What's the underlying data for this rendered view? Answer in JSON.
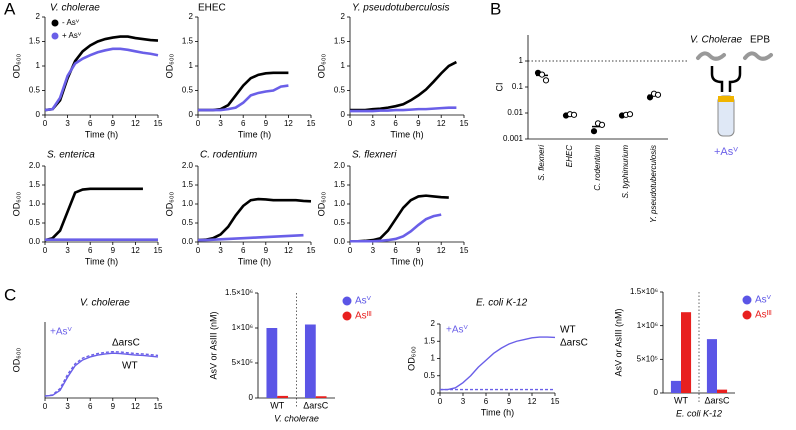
{
  "panel_labels": [
    "A",
    "B",
    "C"
  ],
  "diagram": {
    "organism": "V. Cholerae",
    "competitor": "EPB",
    "condition": "+Asⱽ"
  },
  "chart_data": [
    {
      "type": "line",
      "title": "V. cholerae",
      "xlabel": "Time (h)",
      "ylabel": "OD₆₀₀",
      "x": [
        0,
        1,
        2,
        3,
        4,
        5,
        6,
        7,
        8,
        9,
        10,
        11,
        12,
        13,
        14,
        15
      ],
      "xlim": [
        0,
        15
      ],
      "xticks": [
        0,
        3,
        6,
        9,
        12,
        15
      ],
      "ylim": [
        0,
        2
      ],
      "yticks": [
        0,
        0.5,
        1,
        1.5,
        2
      ],
      "legend": "upper left",
      "series": [
        {
          "name": "- Asⱽ",
          "color": "#000000",
          "values": [
            0.1,
            0.12,
            0.3,
            0.75,
            1.1,
            1.3,
            1.42,
            1.5,
            1.55,
            1.58,
            1.6,
            1.6,
            1.57,
            1.55,
            1.53,
            1.52
          ]
        },
        {
          "name": "+ Asⱽ",
          "color": "#6a5fe8",
          "values": [
            0.1,
            0.12,
            0.35,
            0.8,
            1.05,
            1.15,
            1.22,
            1.28,
            1.32,
            1.35,
            1.35,
            1.33,
            1.3,
            1.27,
            1.25,
            1.22
          ]
        }
      ]
    },
    {
      "type": "line",
      "title": "EHEC",
      "xlabel": "Time (h)",
      "ylabel": "OD₆₀₀",
      "x": [
        0,
        1,
        2,
        3,
        4,
        5,
        6,
        7,
        8,
        9,
        10,
        11,
        12,
        13,
        14,
        15
      ],
      "xlim": [
        0,
        15
      ],
      "xticks": [
        0,
        3,
        6,
        9,
        12,
        15
      ],
      "ylim": [
        0,
        2
      ],
      "yticks": [
        0,
        0.5,
        1,
        1.5,
        2
      ],
      "series": [
        {
          "color": "#000000",
          "values": [
            0.1,
            0.1,
            0.1,
            0.12,
            0.2,
            0.4,
            0.6,
            0.75,
            0.82,
            0.85,
            0.86,
            0.86,
            0.86,
            null,
            null,
            null
          ]
        },
        {
          "color": "#6a5fe8",
          "values": [
            0.1,
            0.1,
            0.1,
            0.1,
            0.12,
            0.15,
            0.25,
            0.4,
            0.45,
            0.48,
            0.5,
            0.58,
            0.6,
            null,
            null,
            null
          ]
        }
      ]
    },
    {
      "type": "line",
      "title": "Y. pseudotuberculosis",
      "xlabel": "Time (h)",
      "ylabel": "OD₆₀₀",
      "x": [
        0,
        1,
        2,
        3,
        4,
        5,
        6,
        7,
        8,
        9,
        10,
        11,
        12,
        13,
        14,
        15
      ],
      "xlim": [
        0,
        15
      ],
      "xticks": [
        0,
        3,
        6,
        9,
        12,
        15
      ],
      "ylim": [
        0,
        2
      ],
      "yticks": [
        0,
        0.5,
        1,
        1.5,
        2
      ],
      "series": [
        {
          "color": "#000000",
          "values": [
            0.1,
            0.1,
            0.1,
            0.12,
            0.13,
            0.15,
            0.18,
            0.22,
            0.3,
            0.4,
            0.52,
            0.68,
            0.85,
            1.0,
            1.08,
            null
          ]
        },
        {
          "color": "#6a5fe8",
          "values": [
            0.08,
            0.08,
            0.08,
            0.08,
            0.09,
            0.09,
            0.1,
            0.1,
            0.11,
            0.12,
            0.12,
            0.13,
            0.14,
            0.15,
            0.15,
            null
          ]
        }
      ]
    },
    {
      "type": "line",
      "title": "S. enterica",
      "xlabel": "Time (h)",
      "ylabel": "OD₆₀₀",
      "x": [
        0,
        1,
        2,
        3,
        4,
        5,
        6,
        7,
        8,
        9,
        10,
        11,
        12,
        13,
        14,
        15
      ],
      "xlim": [
        0,
        15
      ],
      "xticks": [
        0,
        3,
        6,
        9,
        12,
        15
      ],
      "ylim": [
        0,
        2
      ],
      "yticks": [
        {
          "value": 0,
          "label": "0.0"
        },
        0.5,
        {
          "value": 1,
          "label": "1.0"
        },
        1.5,
        {
          "value": 2,
          "label": "2.0"
        }
      ],
      "series": [
        {
          "color": "#000000",
          "values": [
            0.05,
            0.1,
            0.3,
            0.8,
            1.3,
            1.38,
            1.4,
            1.4,
            1.4,
            1.4,
            1.4,
            1.4,
            1.4,
            1.4,
            null,
            null
          ]
        },
        {
          "color": "#6a5fe8",
          "values": [
            0.06,
            0.06,
            0.06,
            0.06,
            0.06,
            0.06,
            0.06,
            0.06,
            0.06,
            0.06,
            0.06,
            0.06,
            0.06,
            0.06,
            0.06,
            0.06
          ]
        }
      ]
    },
    {
      "type": "line",
      "title": "C. rodentium",
      "xlabel": "Time (h)",
      "ylabel": "OD₆₀₀",
      "x": [
        0,
        1,
        2,
        3,
        4,
        5,
        6,
        7,
        8,
        9,
        10,
        11,
        12,
        13,
        14,
        15
      ],
      "xlim": [
        0,
        15
      ],
      "xticks": [
        0,
        3,
        6,
        9,
        12,
        15
      ],
      "ylim": [
        0,
        2
      ],
      "yticks": [
        {
          "value": 0,
          "label": "0.0"
        },
        0.5,
        {
          "value": 1,
          "label": "1.0"
        },
        1.5,
        {
          "value": 2,
          "label": "2.0"
        }
      ],
      "series": [
        {
          "color": "#000000",
          "values": [
            0.05,
            0.06,
            0.1,
            0.2,
            0.4,
            0.7,
            0.95,
            1.1,
            1.13,
            1.12,
            1.1,
            1.1,
            1.1,
            1.1,
            1.08,
            1.07
          ]
        },
        {
          "color": "#6a5fe8",
          "values": [
            0.05,
            0.05,
            0.06,
            0.07,
            0.08,
            0.09,
            0.1,
            0.11,
            0.12,
            0.13,
            0.14,
            0.15,
            0.16,
            0.17,
            0.18,
            null
          ]
        }
      ]
    },
    {
      "type": "line",
      "title": "S. flexneri",
      "xlabel": "Time (h)",
      "ylabel": "OD₆₀₀",
      "x": [
        0,
        1,
        2,
        3,
        4,
        5,
        6,
        7,
        8,
        9,
        10,
        11,
        12,
        13,
        14,
        15
      ],
      "xlim": [
        0,
        15
      ],
      "xticks": [
        0,
        3,
        6,
        9,
        12,
        15
      ],
      "ylim": [
        0,
        2
      ],
      "yticks": [
        {
          "value": 0,
          "label": "0.0"
        },
        0.5,
        {
          "value": 1,
          "label": "1.0"
        },
        1.5,
        {
          "value": 2,
          "label": "2.0"
        }
      ],
      "series": [
        {
          "color": "#000000",
          "values": [
            0.02,
            0.02,
            0.03,
            0.05,
            0.1,
            0.3,
            0.6,
            0.9,
            1.1,
            1.2,
            1.22,
            1.2,
            1.18,
            1.17,
            null,
            null
          ]
        },
        {
          "color": "#6a5fe8",
          "values": [
            0.02,
            0.02,
            0.02,
            0.02,
            0.03,
            0.05,
            0.08,
            0.15,
            0.28,
            0.45,
            0.6,
            0.68,
            0.72,
            null,
            null,
            null
          ]
        }
      ]
    },
    {
      "type": "dot",
      "ylabel": "CI",
      "yscale": "log",
      "ylim": [
        0.001,
        10
      ],
      "yticks": [
        0.001,
        0.01,
        0.1,
        1
      ],
      "reference_line": 1,
      "color": "#000000",
      "categories": [
        "S. flexneri",
        "EHEC",
        "C. rodentium",
        "S. typhimurium",
        "Y. pseudotuberculosis"
      ],
      "values": [
        0.28,
        0.0085,
        0.003,
        0.0085,
        0.048
      ],
      "points": [
        [
          0.35,
          0.3,
          0.18
        ],
        [
          0.008,
          0.009,
          0.0085
        ],
        [
          0.002,
          0.004,
          0.0035
        ],
        [
          0.008,
          0.0085,
          0.009
        ],
        [
          0.04,
          0.055,
          0.05
        ]
      ]
    },
    {
      "type": "line",
      "title": "V. cholerae",
      "ylabel": "OD₆₀₀",
      "annotation": "+Asⱽ",
      "x": [
        0,
        1,
        2,
        3,
        4,
        5,
        6,
        7,
        8,
        9,
        10,
        11,
        12,
        13,
        14,
        15
      ],
      "xlim": [
        0,
        15
      ],
      "xticks": [
        0,
        3,
        6,
        9,
        12,
        15
      ],
      "ylim": [
        0,
        2
      ],
      "legend": "line end",
      "series": [
        {
          "name": "WT",
          "color": "#6a5fe8",
          "values": [
            0.05,
            0.07,
            0.2,
            0.55,
            0.85,
            1.0,
            1.08,
            1.13,
            1.16,
            1.18,
            1.17,
            1.15,
            1.13,
            1.12,
            1.1,
            1.08
          ]
        },
        {
          "name": "ΔarsC",
          "color": "#6a5fe8",
          "style": "dashed",
          "values": [
            0.05,
            0.08,
            0.25,
            0.62,
            0.9,
            1.05,
            1.12,
            1.17,
            1.2,
            1.22,
            1.21,
            1.19,
            1.17,
            1.16,
            1.14,
            1.12
          ]
        }
      ]
    },
    {
      "type": "bar",
      "xlabel": "V. cholerae",
      "ylabel": "AsV or AsIII (nM)",
      "legend": "right",
      "categories": [
        "WT",
        "ΔarsC"
      ],
      "ylim": [
        0,
        1500000
      ],
      "yticks": [
        0,
        {
          "value": 500000,
          "label": "5×10⁵"
        },
        {
          "value": 1000000,
          "label": "1×10⁶"
        },
        {
          "value": 1500000,
          "label": "1.5×10⁶"
        }
      ],
      "series": [
        {
          "name": "Asⱽ",
          "color": "#5b55e6",
          "values": [
            1000000,
            1050000
          ]
        },
        {
          "name": "Asᴵᴵᴵ",
          "color": "#e8201f",
          "values": [
            30000,
            25000
          ]
        }
      ]
    },
    {
      "type": "line",
      "title": "E. coli K-12",
      "xlabel": "Time (h)",
      "ylabel": "OD₆₀₀",
      "annotation": "+Asⱽ",
      "x": [
        0,
        1,
        2,
        3,
        4,
        5,
        6,
        7,
        8,
        9,
        10,
        11,
        12,
        13,
        14,
        15
      ],
      "xlim": [
        0,
        15
      ],
      "xticks": [
        0,
        3,
        6,
        9,
        12,
        15
      ],
      "ylim": [
        0,
        2
      ],
      "yticks": [
        0,
        0.5,
        1,
        1.5,
        2
      ],
      "legend": "line end",
      "series": [
        {
          "name": "WT",
          "color": "#6a5fe8",
          "values": [
            0.1,
            0.1,
            0.15,
            0.3,
            0.5,
            0.75,
            0.95,
            1.15,
            1.3,
            1.42,
            1.5,
            1.55,
            1.6,
            1.62,
            1.62,
            1.61
          ]
        },
        {
          "name": "ΔarsC",
          "color": "#6a5fe8",
          "style": "dashed",
          "values": [
            0.1,
            0.1,
            0.1,
            0.1,
            0.1,
            0.1,
            0.1,
            0.1,
            0.1,
            0.1,
            0.1,
            0.1,
            0.1,
            0.1,
            0.1,
            0.1
          ]
        }
      ]
    },
    {
      "type": "bar",
      "xlabel": "E. coli K-12",
      "ylabel": "AsV or AsIII (nM)",
      "legend": "right",
      "categories": [
        "WT",
        "ΔarsC"
      ],
      "ylim": [
        0,
        1500000
      ],
      "yticks": [
        0,
        {
          "value": 500000,
          "label": "5×10⁵"
        },
        {
          "value": 1000000,
          "label": "1×10⁶"
        },
        {
          "value": 1500000,
          "label": "1.5×10⁶"
        }
      ],
      "series": [
        {
          "name": "Asⱽ",
          "color": "#5b55e6",
          "values": [
            180000,
            800000
          ]
        },
        {
          "name": "Asᴵᴵᴵ",
          "color": "#e8201f",
          "values": [
            1200000,
            50000
          ]
        }
      ]
    }
  ]
}
